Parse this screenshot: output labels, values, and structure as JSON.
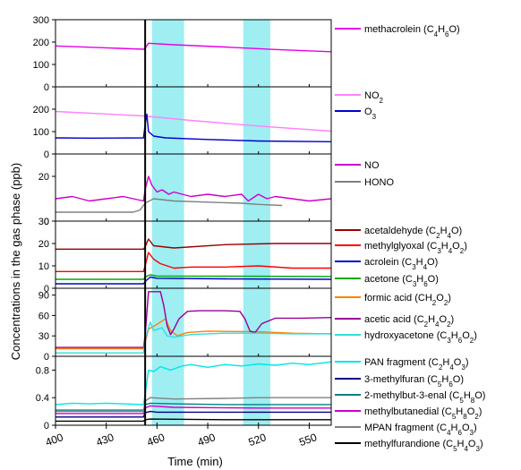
{
  "chart_data": {
    "type": "line",
    "ylabel": "Concentrations in the gas phase (ppb)",
    "xlabel": "Time (min)",
    "x_ticks": [
      400,
      430,
      460,
      490,
      520,
      550
    ],
    "xlim": [
      400,
      563
    ],
    "event_line_x": 453,
    "shaded_intervals": [
      [
        457,
        476
      ],
      [
        511,
        527
      ]
    ],
    "colors": {
      "shade": "#7fe8ee",
      "event_line": "#000000"
    },
    "panels": [
      {
        "id": "p1",
        "ylim": [
          0,
          300
        ],
        "yticks": [
          0,
          100,
          200,
          300
        ],
        "series": [
          {
            "name": "methacrolein (C4H6O)",
            "color": "#e600e6",
            "x": [
              400,
              452,
              453,
              455,
              470,
              500,
              530,
              563
            ],
            "y": [
              183,
              168,
              172,
              195,
              188,
              178,
              167,
              157
            ]
          }
        ]
      },
      {
        "id": "p2",
        "ylim": [
          0,
          300
        ],
        "yticks": [
          0,
          100,
          200
        ],
        "series": [
          {
            "name": "NO2",
            "color": "#ff80ff",
            "x": [
              400,
              452,
              480,
              520,
              563
            ],
            "y": [
              190,
              170,
              150,
              125,
              102
            ]
          },
          {
            "name": "O3",
            "color": "#0000cc",
            "x": [
              400,
              420,
              452,
              453,
              454,
              455,
              458,
              465,
              490,
              520,
              563
            ],
            "y": [
              72,
              71,
              72,
              130,
              178,
              100,
              80,
              72,
              65,
              58,
              55
            ]
          }
        ]
      },
      {
        "id": "p3",
        "ylim": [
          0,
          30
        ],
        "yticks": [
          0,
          20
        ],
        "series": [
          {
            "name": "NO",
            "color": "#cc00cc",
            "x": [
              400,
              410,
              420,
              430,
              440,
              452,
              453,
              455,
              457,
              460,
              463,
              467,
              470,
              475,
              480,
              490,
              500,
              510,
              514,
              520,
              525,
              530,
              540,
              550,
              563
            ],
            "y": [
              10,
              11,
              9,
              10,
              11,
              9,
              14,
              20,
              16,
              13,
              14,
              12,
              13,
              12,
              11,
              12,
              11,
              12,
              9,
              12,
              10,
              11,
              10,
              9,
              10
            ]
          },
          {
            "name": "HONO",
            "color": "#808080",
            "x": [
              400,
              446,
              450,
              453,
              458,
              470,
              490,
              510,
              520,
              534
            ],
            "y": [
              4,
              4,
              5,
              8,
              10,
              9,
              8.5,
              8,
              7.5,
              7
            ]
          }
        ]
      },
      {
        "id": "p4",
        "ylim": [
          0,
          30
        ],
        "yticks": [
          0,
          10,
          20,
          30
        ],
        "series": [
          {
            "name": "acetaldehyde (C2H4O)",
            "color": "#990000",
            "x": [
              400,
              452,
              453,
              455,
              458,
              470,
              500,
              530,
              563
            ],
            "y": [
              17.5,
              17.5,
              18.5,
              22,
              19,
              18,
              19.5,
              20,
              20
            ]
          },
          {
            "name": "methylglyoxal (C3H4O2)",
            "color": "#ff0000",
            "x": [
              400,
              452,
              453,
              455,
              458,
              462,
              466,
              470,
              480,
              500,
              520,
              540,
              563
            ],
            "y": [
              7.5,
              7.5,
              10,
              16,
              13,
              11,
              10,
              9,
              9.5,
              9.5,
              10,
              9,
              9
            ]
          },
          {
            "name": "acrolein (C3H4O)",
            "color": "#0000cc",
            "x": [
              400,
              452,
              453,
              456,
              460,
              500,
              563
            ],
            "y": [
              2,
              2,
              3,
              5,
              4.5,
              4.2,
              4
            ]
          },
          {
            "name": "acetone (C3H6O)",
            "color": "#00aa00",
            "x": [
              400,
              452,
              453,
              456,
              460,
              500,
              563
            ],
            "y": [
              4,
              4,
              5,
              6,
              5.5,
              5.4,
              5.3
            ]
          }
        ]
      },
      {
        "id": "p5",
        "ylim": [
          0,
          100
        ],
        "yticks": [
          0,
          30,
          60,
          90
        ],
        "series": [
          {
            "name": "formic acid (CH2O2)",
            "color": "#ff8000",
            "x": [
              400,
              452,
              453,
              455,
              460,
              465,
              468,
              472,
              478,
              490,
              520,
              540,
              563
            ],
            "y": [
              11,
              11,
              20,
              40,
              47,
              55,
              38,
              30,
              35,
              37,
              36,
              34,
              33
            ]
          },
          {
            "name": "acetic acid (C2H4O2)",
            "color": "#990099",
            "x": [
              400,
              452,
              453,
              455,
              462,
              464,
              466,
              468,
              470,
              473,
              478,
              485,
              500,
              509,
              512,
              515,
              518,
              522,
              530,
              545,
              563
            ],
            "y": [
              13,
              13,
              30,
              95,
              95,
              75,
              45,
              32,
              40,
              55,
              66,
              67,
              67,
              66,
              55,
              37,
              35,
              48,
              56,
              56,
              57
            ]
          },
          {
            "name": "hydroxyacetone (C3H6O2)",
            "color": "#33dddd",
            "x": [
              400,
              452,
              453,
              456,
              458,
              463,
              466,
              470,
              480,
              500,
              520,
              540,
              563
            ],
            "y": [
              5,
              5,
              25,
              50,
              38,
              42,
              30,
              28,
              32,
              34,
              34,
              33,
              33
            ]
          }
        ]
      },
      {
        "id": "p6",
        "ylim": [
          0,
          1.0
        ],
        "yticks": [
          0.0,
          0.4,
          0.8
        ],
        "series": [
          {
            "name": "PAN fragment (C2H4O3)",
            "color": "#00e6e6",
            "x": [
              400,
              410,
              420,
              430,
              440,
              452,
              453,
              455,
              458,
              462,
              468,
              475,
              480,
              490,
              500,
              510,
              520,
              530,
              540,
              550,
              563
            ],
            "y": [
              0.3,
              0.32,
              0.31,
              0.32,
              0.31,
              0.3,
              0.45,
              0.8,
              0.78,
              0.85,
              0.8,
              0.86,
              0.88,
              0.84,
              0.88,
              0.86,
              0.89,
              0.87,
              0.9,
              0.88,
              0.92
            ]
          },
          {
            "name": "3-methylfuran (C5H6O)",
            "color": "#000080",
            "x": [
              400,
              452,
              453,
              456,
              460,
              500,
              563
            ],
            "y": [
              0.12,
              0.12,
              0.18,
              0.2,
              0.19,
              0.19,
              0.19
            ]
          },
          {
            "name": "2-methylbut-3-enal (C5H8O)",
            "color": "#008080",
            "x": [
              400,
              452,
              453,
              456,
              470,
              500,
              563
            ],
            "y": [
              0.22,
              0.22,
              0.3,
              0.32,
              0.31,
              0.3,
              0.3
            ]
          },
          {
            "name": "methylbutanedial (C5H8O2)",
            "color": "#cc00cc",
            "x": [
              400,
              452,
              453,
              456,
              470,
              520,
              563
            ],
            "y": [
              0.17,
              0.17,
              0.25,
              0.28,
              0.26,
              0.25,
              0.25
            ]
          },
          {
            "name": "MPAN fragment (C4H6O3)",
            "color": "#808080",
            "x": [
              400,
              452,
              453,
              456,
              470,
              500,
              520,
              563
            ],
            "y": [
              0.2,
              0.2,
              0.35,
              0.4,
              0.38,
              0.39,
              0.4,
              0.4
            ]
          },
          {
            "name": "methylfurandione (C5H4O3)",
            "color": "#000000",
            "x": [
              400,
              452,
              453,
              456,
              500,
              563
            ],
            "y": [
              0.06,
              0.06,
              0.08,
              0.09,
              0.08,
              0.08
            ]
          }
        ]
      }
    ]
  },
  "legend": [
    {
      "panel": "p1",
      "color": "#e600e6",
      "parts": [
        [
          "methacrolein (C",
          0
        ],
        [
          "4",
          1
        ],
        [
          "H",
          0
        ],
        [
          "6",
          1
        ],
        [
          "O)",
          0
        ]
      ]
    },
    {
      "panel": "p2",
      "color": "#ff80ff",
      "parts": [
        [
          "NO",
          0
        ],
        [
          "2",
          1
        ]
      ]
    },
    {
      "panel": "p2",
      "color": "#0000cc",
      "parts": [
        [
          "O",
          0
        ],
        [
          "3",
          1
        ]
      ]
    },
    {
      "panel": "p3",
      "color": "#cc00cc",
      "parts": [
        [
          "NO",
          0
        ]
      ]
    },
    {
      "panel": "p3",
      "color": "#808080",
      "parts": [
        [
          "HONO",
          0
        ]
      ]
    },
    {
      "panel": "p4",
      "color": "#990000",
      "parts": [
        [
          "acetaldehyde (C",
          0
        ],
        [
          "2",
          1
        ],
        [
          "H",
          0
        ],
        [
          "4",
          1
        ],
        [
          "O)",
          0
        ]
      ]
    },
    {
      "panel": "p4",
      "color": "#ff0000",
      "parts": [
        [
          "methylglyoxal (C",
          0
        ],
        [
          "3",
          1
        ],
        [
          "H",
          0
        ],
        [
          "4",
          1
        ],
        [
          "O",
          0
        ],
        [
          "2",
          1
        ],
        [
          ")",
          0
        ]
      ]
    },
    {
      "panel": "p4",
      "color": "#0000cc",
      "parts": [
        [
          "acrolein (C",
          0
        ],
        [
          "3",
          1
        ],
        [
          "H",
          0
        ],
        [
          "4",
          1
        ],
        [
          "O)",
          0
        ]
      ]
    },
    {
      "panel": "p4",
      "color": "#00aa00",
      "parts": [
        [
          "acetone (C",
          0
        ],
        [
          "3",
          1
        ],
        [
          "H",
          0
        ],
        [
          "6",
          1
        ],
        [
          "O)",
          0
        ]
      ]
    },
    {
      "panel": "p5",
      "color": "#ff8000",
      "parts": [
        [
          "formic acid (CH",
          0
        ],
        [
          "2",
          1
        ],
        [
          "O",
          0
        ],
        [
          "2",
          1
        ],
        [
          ")",
          0
        ]
      ]
    },
    {
      "panel": "p5",
      "color": "#990099",
      "parts": [
        [
          "acetic acid (C",
          0
        ],
        [
          "2",
          1
        ],
        [
          "H",
          0
        ],
        [
          "4",
          1
        ],
        [
          "O",
          0
        ],
        [
          "2",
          1
        ],
        [
          ")",
          0
        ]
      ]
    },
    {
      "panel": "p5",
      "color": "#33dddd",
      "parts": [
        [
          "hydroxyacetone (C",
          0
        ],
        [
          "3",
          1
        ],
        [
          "H",
          0
        ],
        [
          "6",
          1
        ],
        [
          "O",
          0
        ],
        [
          "2",
          1
        ],
        [
          ")",
          0
        ]
      ]
    },
    {
      "panel": "p6",
      "color": "#00e6e6",
      "parts": [
        [
          "PAN fragment (C",
          0
        ],
        [
          "2",
          1
        ],
        [
          "H",
          0
        ],
        [
          "4",
          1
        ],
        [
          "O",
          0
        ],
        [
          "3",
          1
        ],
        [
          ")",
          0
        ]
      ]
    },
    {
      "panel": "p6",
      "color": "#000080",
      "parts": [
        [
          "3-methylfuran (C",
          0
        ],
        [
          "5",
          1
        ],
        [
          "H",
          0
        ],
        [
          "6",
          1
        ],
        [
          "O)",
          0
        ]
      ]
    },
    {
      "panel": "p6",
      "color": "#008080",
      "parts": [
        [
          "2-methylbut-3-enal (C",
          0
        ],
        [
          "5",
          1
        ],
        [
          "H",
          0
        ],
        [
          "8",
          1
        ],
        [
          "O)",
          0
        ]
      ]
    },
    {
      "panel": "p6",
      "color": "#cc00cc",
      "parts": [
        [
          "methylbutanedial (C",
          0
        ],
        [
          "5",
          1
        ],
        [
          "H",
          0
        ],
        [
          "8",
          1
        ],
        [
          "O",
          0
        ],
        [
          "2",
          1
        ],
        [
          ")",
          0
        ]
      ]
    },
    {
      "panel": "p6",
      "color": "#808080",
      "parts": [
        [
          "MPAN fragment (C",
          0
        ],
        [
          "4",
          1
        ],
        [
          "H",
          0
        ],
        [
          "6",
          1
        ],
        [
          "O",
          0
        ],
        [
          "3",
          1
        ],
        [
          ")",
          0
        ]
      ]
    },
    {
      "panel": "p6",
      "color": "#000000",
      "parts": [
        [
          "methylfurandione (C",
          0
        ],
        [
          "5",
          1
        ],
        [
          "H",
          0
        ],
        [
          "4",
          1
        ],
        [
          "O",
          0
        ],
        [
          "3",
          1
        ],
        [
          ")",
          0
        ]
      ]
    }
  ]
}
